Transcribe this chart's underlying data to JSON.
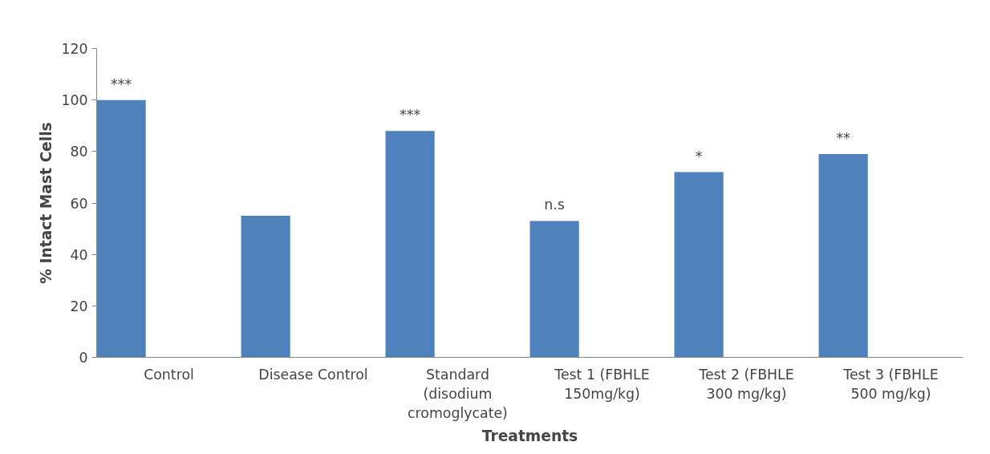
{
  "chart_data": {
    "type": "bar",
    "xlabel": "Treatments",
    "ylabel": "% Intact Mast Cells",
    "categories": [
      "Control",
      "Disease Control",
      "Standard (disodium cromoglycate)",
      "Test 1 (FBHLE 150mg/kg)",
      "Test 2 (FBHLE 300 mg/kg)",
      "Test 3 (FBHLE 500 mg/kg)"
    ],
    "values": [
      100,
      55,
      88,
      53,
      72,
      79
    ],
    "color": "#4f81bd",
    "value_labels": [
      "***",
      null,
      "***",
      "n.s",
      "*",
      "**"
    ],
    "ylim": [
      0,
      120
    ],
    "yticks": [
      0,
      20,
      40,
      60,
      80,
      100,
      120
    ],
    "grid": false
  }
}
